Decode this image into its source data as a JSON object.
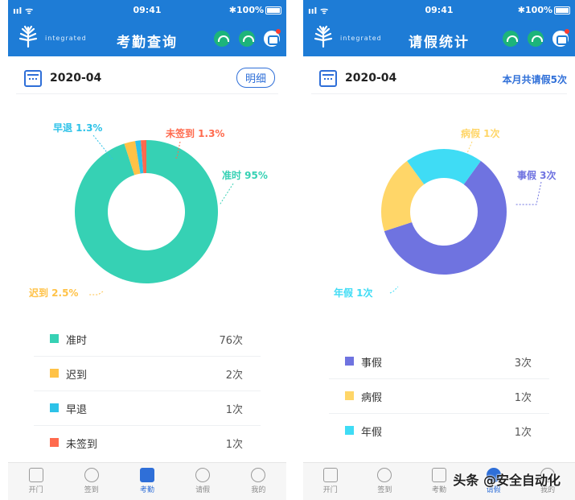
{
  "left": {
    "status": {
      "signal": "ııl ᯤ",
      "time": "09:41",
      "battery": "✱100%"
    },
    "logo_text": "integrated",
    "title": "考勤查询",
    "date": "2020-04",
    "detail_button": "明细",
    "chart_data": {
      "type": "pie",
      "categories": [
        "准时",
        "迟到",
        "早退",
        "未签到"
      ],
      "values": [
        76,
        2,
        1,
        1
      ],
      "colors": [
        "#36d1b4",
        "#ffc247",
        "#2dc2e8",
        "#ff6a4d"
      ],
      "slice_labels": [
        "准时 95%",
        "迟到 2.5%",
        "早退 1.3%",
        "未签到 1.3%"
      ]
    },
    "legend": [
      {
        "label": "准时",
        "count": "76次",
        "color": "#36d1b4"
      },
      {
        "label": "迟到",
        "count": "2次",
        "color": "#ffc247"
      },
      {
        "label": "早退",
        "count": "1次",
        "color": "#2dc2e8"
      },
      {
        "label": "未签到",
        "count": "1次",
        "color": "#ff6a4d"
      }
    ],
    "tabs": [
      {
        "label": "开门",
        "icon": "door-icon"
      },
      {
        "label": "签到",
        "icon": "clock-icon"
      },
      {
        "label": "考勤",
        "icon": "calendar-icon"
      },
      {
        "label": "请假",
        "icon": "leave-icon"
      },
      {
        "label": "我的",
        "icon": "user-icon"
      }
    ],
    "active_tab": 2
  },
  "right": {
    "status": {
      "signal": "ııl ᯤ",
      "time": "09:41",
      "battery": "✱100%"
    },
    "logo_text": "integrated",
    "title": "请假统计",
    "date": "2020-04",
    "month_total": "本月共请假5次",
    "chart_data": {
      "type": "pie",
      "categories": [
        "事假",
        "病假",
        "年假"
      ],
      "values": [
        3,
        1,
        1
      ],
      "colors": [
        "#6f73e0",
        "#ffd668",
        "#3fdcf5"
      ],
      "slice_labels": [
        "事假 3次",
        "病假 1次",
        "年假 1次"
      ]
    },
    "legend": [
      {
        "label": "事假",
        "count": "3次",
        "color": "#6f73e0"
      },
      {
        "label": "病假",
        "count": "1次",
        "color": "#ffd668"
      },
      {
        "label": "年假",
        "count": "1次",
        "color": "#3fdcf5"
      }
    ],
    "tabs": [
      {
        "label": "开门",
        "icon": "door-icon"
      },
      {
        "label": "签到",
        "icon": "clock-icon"
      },
      {
        "label": "考勤",
        "icon": "calendar-icon"
      },
      {
        "label": "请假",
        "icon": "leave-icon"
      },
      {
        "label": "我的",
        "icon": "user-icon"
      }
    ],
    "active_tab": 3
  },
  "watermark": "头条 @安全自动化"
}
